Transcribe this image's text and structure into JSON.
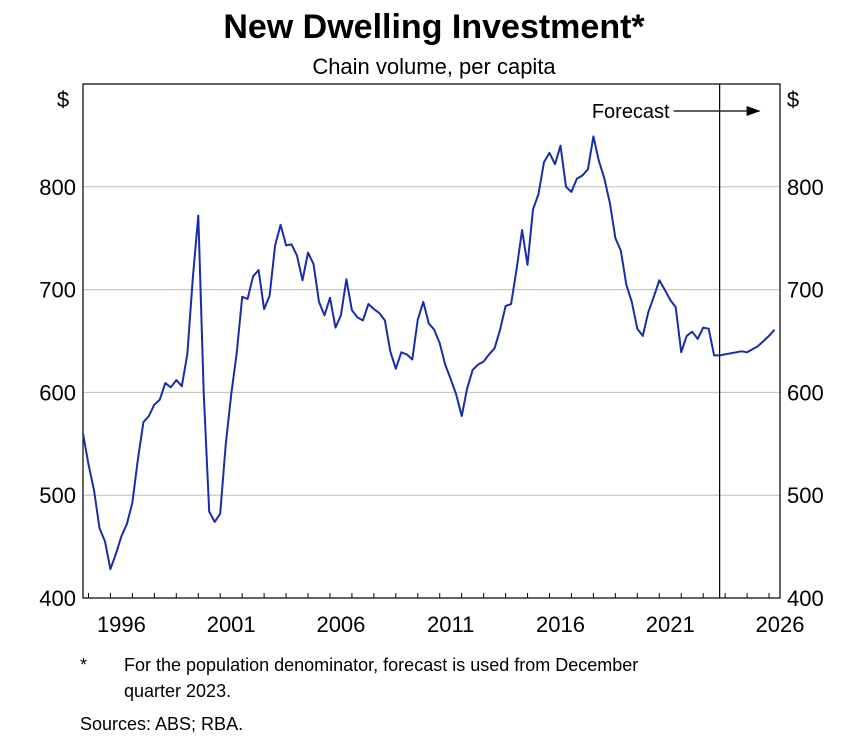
{
  "chart_data": {
    "type": "line",
    "title": "New Dwelling Investment*",
    "subtitle": "Chain volume, per capita",
    "left_unit": "$",
    "right_unit": "$",
    "ylim": [
      400,
      900
    ],
    "yticks": [
      400,
      500,
      600,
      700,
      800
    ],
    "xlim": [
      1994.75,
      2026.5
    ],
    "xticks": [
      {
        "label": "1996",
        "value": 1996.5
      },
      {
        "label": "2001",
        "value": 2001.5
      },
      {
        "label": "2006",
        "value": 2006.5
      },
      {
        "label": "2011",
        "value": 2011.5
      },
      {
        "label": "2016",
        "value": 2016.5
      },
      {
        "label": "2021",
        "value": 2021.5
      },
      {
        "label": "2026",
        "value": 2026.5
      }
    ],
    "grid": true,
    "forecast_start": 2023.75,
    "forecast_label": "Forecast",
    "series": [
      {
        "color": "#1a2da8",
        "points": [
          [
            1994.75,
            560
          ],
          [
            1995.0,
            530
          ],
          [
            1995.25,
            505
          ],
          [
            1995.5,
            468
          ],
          [
            1995.75,
            455
          ],
          [
            1996.0,
            428
          ],
          [
            1996.25,
            443
          ],
          [
            1996.5,
            460
          ],
          [
            1996.75,
            472
          ],
          [
            1997.0,
            493
          ],
          [
            1997.25,
            535
          ],
          [
            1997.5,
            571
          ],
          [
            1997.75,
            577
          ],
          [
            1998.0,
            588
          ],
          [
            1998.25,
            593
          ],
          [
            1998.5,
            609
          ],
          [
            1998.75,
            605
          ],
          [
            1999.0,
            612
          ],
          [
            1999.25,
            606
          ],
          [
            1999.5,
            637
          ],
          [
            1999.75,
            711
          ],
          [
            2000.0,
            772
          ],
          [
            2000.25,
            600
          ],
          [
            2000.5,
            484
          ],
          [
            2000.75,
            474
          ],
          [
            2001.0,
            482
          ],
          [
            2001.25,
            549
          ],
          [
            2001.5,
            598
          ],
          [
            2001.75,
            638
          ],
          [
            2002.0,
            693
          ],
          [
            2002.25,
            691
          ],
          [
            2002.5,
            713
          ],
          [
            2002.75,
            719
          ],
          [
            2003.0,
            681
          ],
          [
            2003.25,
            694
          ],
          [
            2003.5,
            743
          ],
          [
            2003.75,
            763
          ],
          [
            2004.0,
            743
          ],
          [
            2004.25,
            744
          ],
          [
            2004.5,
            733
          ],
          [
            2004.75,
            709
          ],
          [
            2005.0,
            736
          ],
          [
            2005.25,
            725
          ],
          [
            2005.5,
            688
          ],
          [
            2005.75,
            675
          ],
          [
            2006.0,
            692
          ],
          [
            2006.25,
            663
          ],
          [
            2006.5,
            675
          ],
          [
            2006.75,
            710
          ],
          [
            2007.0,
            680
          ],
          [
            2007.25,
            673
          ],
          [
            2007.5,
            670
          ],
          [
            2007.75,
            686
          ],
          [
            2008.0,
            681
          ],
          [
            2008.25,
            677
          ],
          [
            2008.5,
            670
          ],
          [
            2008.75,
            640
          ],
          [
            2009.0,
            623
          ],
          [
            2009.25,
            639
          ],
          [
            2009.5,
            637
          ],
          [
            2009.75,
            632
          ],
          [
            2010.0,
            671
          ],
          [
            2010.25,
            688
          ],
          [
            2010.5,
            667
          ],
          [
            2010.75,
            661
          ],
          [
            2011.0,
            648
          ],
          [
            2011.25,
            627
          ],
          [
            2011.5,
            613
          ],
          [
            2011.75,
            598
          ],
          [
            2012.0,
            577
          ],
          [
            2012.25,
            604
          ],
          [
            2012.5,
            622
          ],
          [
            2012.75,
            627
          ],
          [
            2013.0,
            630
          ],
          [
            2013.25,
            637
          ],
          [
            2013.5,
            643
          ],
          [
            2013.75,
            661
          ],
          [
            2014.0,
            684
          ],
          [
            2014.25,
            686
          ],
          [
            2014.5,
            720
          ],
          [
            2014.75,
            758
          ],
          [
            2015.0,
            724
          ],
          [
            2015.25,
            778
          ],
          [
            2015.5,
            793
          ],
          [
            2015.75,
            824
          ],
          [
            2016.0,
            833
          ],
          [
            2016.25,
            822
          ],
          [
            2016.5,
            840
          ],
          [
            2016.75,
            800
          ],
          [
            2017.0,
            795
          ],
          [
            2017.25,
            808
          ],
          [
            2017.5,
            811
          ],
          [
            2017.75,
            817
          ],
          [
            2018.0,
            849
          ],
          [
            2018.25,
            825
          ],
          [
            2018.5,
            808
          ],
          [
            2018.75,
            784
          ],
          [
            2019.0,
            750
          ],
          [
            2019.25,
            738
          ],
          [
            2019.5,
            705
          ],
          [
            2019.75,
            688
          ],
          [
            2020.0,
            662
          ],
          [
            2020.25,
            655
          ],
          [
            2020.5,
            678
          ],
          [
            2020.75,
            693
          ],
          [
            2021.0,
            709
          ],
          [
            2021.25,
            700
          ],
          [
            2021.5,
            690
          ],
          [
            2021.75,
            683
          ],
          [
            2022.0,
            639
          ],
          [
            2022.25,
            655
          ],
          [
            2022.5,
            659
          ],
          [
            2022.75,
            652
          ],
          [
            2023.0,
            663
          ],
          [
            2023.25,
            662
          ],
          [
            2023.5,
            636
          ],
          [
            2023.75,
            636
          ],
          [
            2024.25,
            638
          ],
          [
            2024.75,
            640
          ],
          [
            2025.0,
            639
          ],
          [
            2025.5,
            645
          ],
          [
            2025.75,
            650
          ],
          [
            2026.0,
            655
          ],
          [
            2026.25,
            661
          ]
        ]
      }
    ]
  },
  "footnote": {
    "marker": "*",
    "line1": "For the population denominator, forecast is used from December",
    "line2": "quarter 2023."
  },
  "sources": "Sources: ABS; RBA."
}
